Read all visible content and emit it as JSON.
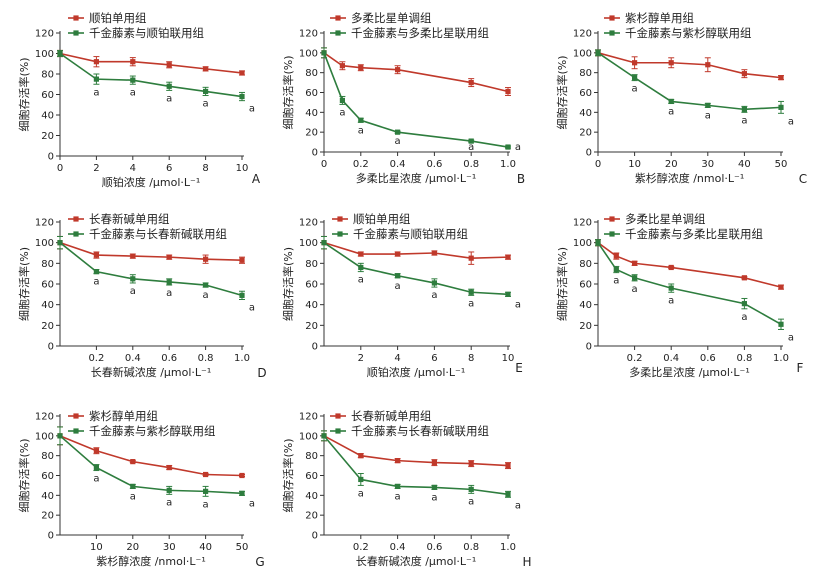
{
  "colors": {
    "single": "#c0392b",
    "combo": "#2e7d3e",
    "axis": "#333333"
  },
  "chart_data": [
    {
      "type": "line",
      "panel": "A",
      "xlabel": "顺铂浓度 /μmol·L⁻¹",
      "ylabel": "细胞存活率(%)",
      "x": [
        0,
        2,
        4,
        6,
        8,
        10
      ],
      "xlim": [
        0,
        10
      ],
      "xticks": [
        "0",
        "2",
        "4",
        "6",
        "8",
        "10"
      ],
      "ylim": [
        0,
        120
      ],
      "yticks": [
        "0",
        "20",
        "40",
        "60",
        "80",
        "100",
        "120"
      ],
      "series": [
        {
          "name": "顺铂单用组",
          "color": "#c0392b",
          "values": [
            100,
            92,
            92,
            89,
            85,
            81
          ],
          "errors": [
            3,
            5,
            4,
            3,
            2,
            2
          ]
        },
        {
          "name": "千金藤素与顺铂联用组",
          "color": "#2e7d3e",
          "values": [
            100,
            75,
            74,
            68,
            63,
            58
          ],
          "errors": [
            3,
            5,
            4,
            4,
            4,
            4
          ]
        }
      ],
      "annotations": [
        "a",
        "a",
        "a",
        "a",
        "a"
      ]
    },
    {
      "type": "line",
      "panel": "B",
      "xlabel": "多柔比星浓度 /μmol·L⁻¹",
      "ylabel": "细胞存活率(%)",
      "x": [
        0,
        0.1,
        0.2,
        0.4,
        0.8,
        1.0
      ],
      "xlim": [
        0,
        1.0
      ],
      "xticks": [
        "0",
        "0.2",
        "0.4",
        "0.6",
        "0.8",
        "1.0"
      ],
      "ylim": [
        0,
        120
      ],
      "yticks": [
        "0",
        "20",
        "40",
        "60",
        "80",
        "100",
        "120"
      ],
      "series": [
        {
          "name": "多柔比星单调组",
          "color": "#c0392b",
          "values": [
            100,
            87,
            85,
            83,
            70,
            61
          ],
          "errors": [
            5,
            4,
            3,
            4,
            4,
            4
          ]
        },
        {
          "name": "千金藤素与多柔比星联用组",
          "color": "#2e7d3e",
          "values": [
            100,
            52,
            32,
            20,
            11,
            5
          ],
          "errors": [
            5,
            4,
            2,
            1,
            1,
            1
          ]
        }
      ],
      "annotations": [
        "a",
        "a",
        "a",
        "a",
        "a"
      ]
    },
    {
      "type": "line",
      "panel": "C",
      "xlabel": "紫杉醇浓度 /nmol·L⁻¹",
      "ylabel": "细胞存活率(%)",
      "x": [
        0,
        10,
        20,
        30,
        40,
        50
      ],
      "xlim": [
        0,
        50
      ],
      "xticks": [
        "0",
        "10",
        "20",
        "30",
        "40",
        "50"
      ],
      "ylim": [
        0,
        120
      ],
      "yticks": [
        "0",
        "20",
        "40",
        "60",
        "80",
        "100",
        "120"
      ],
      "series": [
        {
          "name": "紫杉醇单用组",
          "color": "#c0392b",
          "values": [
            100,
            90,
            90,
            88,
            79,
            75
          ],
          "errors": [
            3,
            6,
            5,
            7,
            4,
            2
          ]
        },
        {
          "name": "千金藤素与紫杉醇联用组",
          "color": "#2e7d3e",
          "values": [
            100,
            75,
            51,
            47,
            43,
            45
          ],
          "errors": [
            3,
            3,
            2,
            2,
            3,
            6
          ]
        }
      ],
      "annotations": [
        "a",
        "a",
        "a",
        "a",
        "a"
      ]
    },
    {
      "type": "line",
      "panel": "D",
      "xlabel": "长春新碱浓度 /μmol·L⁻¹",
      "ylabel": "细胞存活率(%)",
      "x": [
        0,
        0.2,
        0.4,
        0.6,
        0.8,
        1.0
      ],
      "xlim": [
        0,
        1.0
      ],
      "xticks": [
        "0.2",
        "0.4",
        "0.6",
        "0.8",
        "1.0"
      ],
      "ylim": [
        0,
        120
      ],
      "yticks": [
        "0",
        "20",
        "40",
        "60",
        "80",
        "100",
        "120"
      ],
      "series": [
        {
          "name": "长春新碱单用组",
          "color": "#c0392b",
          "values": [
            100,
            88,
            87,
            86,
            84,
            83
          ],
          "errors": [
            6,
            3,
            2,
            2,
            4,
            3
          ]
        },
        {
          "name": "千金藤素与长春新碱联用组",
          "color": "#2e7d3e",
          "values": [
            100,
            72,
            65,
            62,
            59,
            49
          ],
          "errors": [
            6,
            2,
            4,
            3,
            2,
            4
          ]
        }
      ],
      "annotations": [
        "a",
        "a",
        "a",
        "a",
        "a"
      ]
    },
    {
      "type": "line",
      "panel": "E",
      "xlabel": "顺铂浓度 /μmol·L⁻¹",
      "ylabel": "细胞存活率(%)",
      "x": [
        0,
        2,
        4,
        6,
        8,
        10
      ],
      "xlim": [
        0,
        10
      ],
      "xticks": [
        "2",
        "4",
        "6",
        "8",
        "10"
      ],
      "ylim": [
        0,
        120
      ],
      "yticks": [
        "0",
        "20",
        "40",
        "60",
        "80",
        "100",
        "120"
      ],
      "series": [
        {
          "name": "顺铂单用组",
          "color": "#c0392b",
          "values": [
            100,
            89,
            89,
            90,
            85,
            86
          ],
          "errors": [
            6,
            2,
            2,
            2,
            6,
            2
          ]
        },
        {
          "name": "千金藤素与顺铂联用组",
          "color": "#2e7d3e",
          "values": [
            100,
            76,
            68,
            61,
            52,
            50
          ],
          "errors": [
            6,
            4,
            2,
            4,
            3,
            2
          ]
        }
      ],
      "annotations": [
        "a",
        "a",
        "a",
        "a",
        "a"
      ]
    },
    {
      "type": "line",
      "panel": "F",
      "xlabel": "多柔比星浓度 /μmol·L⁻¹",
      "ylabel": "细胞存活率(%)",
      "x": [
        0,
        0.1,
        0.2,
        0.4,
        0.8,
        1.0
      ],
      "xlim": [
        0,
        1.0
      ],
      "xticks": [
        "0.2",
        "0.4",
        "0.6",
        "0.8",
        "1.0"
      ],
      "ylim": [
        0,
        120
      ],
      "yticks": [
        "0",
        "20",
        "40",
        "60",
        "80",
        "100",
        "120"
      ],
      "series": [
        {
          "name": "多柔比星单调组",
          "color": "#c0392b",
          "values": [
            100,
            87,
            80,
            76,
            66,
            57
          ],
          "errors": [
            3,
            3,
            2,
            1,
            1,
            2
          ]
        },
        {
          "name": "千金藤素与多柔比星联用组",
          "color": "#2e7d3e",
          "values": [
            100,
            74,
            66,
            56,
            41,
            21
          ],
          "errors": [
            3,
            3,
            3,
            4,
            5,
            5
          ]
        }
      ],
      "annotations": [
        "a",
        "a",
        "a",
        "a",
        "a"
      ]
    },
    {
      "type": "line",
      "panel": "G",
      "xlabel": "紫杉醇浓度 /nmol·L⁻¹",
      "ylabel": "细胞存活率(%)",
      "x": [
        0,
        10,
        20,
        30,
        40,
        50
      ],
      "xlim": [
        0,
        50
      ],
      "xticks": [
        "10",
        "20",
        "30",
        "40",
        "50"
      ],
      "ylim": [
        0,
        120
      ],
      "yticks": [
        "0",
        "20",
        "40",
        "60",
        "80",
        "100",
        "120"
      ],
      "series": [
        {
          "name": "紫杉醇单用组",
          "color": "#c0392b",
          "values": [
            100,
            85,
            74,
            68,
            61,
            60
          ],
          "errors": [
            9,
            3,
            1,
            2,
            1,
            1
          ]
        },
        {
          "name": "千金藤素与紫杉醇联用组",
          "color": "#2e7d3e",
          "values": [
            100,
            68,
            49,
            45,
            44,
            42
          ],
          "errors": [
            9,
            3,
            2,
            4,
            5,
            2
          ]
        }
      ],
      "annotations": [
        "a",
        "a",
        "a",
        "a",
        "a"
      ]
    },
    {
      "type": "line",
      "panel": "H",
      "xlabel": "长春新碱浓度 /μmol·L⁻¹",
      "ylabel": "细胞存活率(%)",
      "x": [
        0,
        0.2,
        0.4,
        0.6,
        0.8,
        1.0
      ],
      "xlim": [
        0,
        1.0
      ],
      "xticks": [
        "0.2",
        "0.4",
        "0.6",
        "0.8",
        "1.0"
      ],
      "ylim": [
        0,
        120
      ],
      "yticks": [
        "0",
        "20",
        "40",
        "60",
        "80",
        "100",
        "120"
      ],
      "series": [
        {
          "name": "长春新碱单用组",
          "color": "#c0392b",
          "values": [
            100,
            80,
            75,
            73,
            72,
            70
          ],
          "errors": [
            5,
            2,
            2,
            3,
            3,
            3
          ]
        },
        {
          "name": "千金藤素与长春新碱联用组",
          "color": "#2e7d3e",
          "values": [
            100,
            56,
            49,
            48,
            46,
            41
          ],
          "errors": [
            5,
            6,
            2,
            2,
            4,
            3
          ]
        }
      ],
      "annotations": [
        "a",
        "a",
        "a",
        "a",
        "a"
      ]
    }
  ]
}
